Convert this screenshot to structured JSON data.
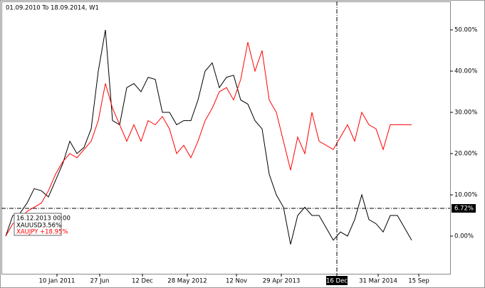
{
  "chart_data": {
    "type": "line",
    "title": "01.09.2010 To 18.09.2014, W1",
    "x_labels": [
      "10 Jan 2011",
      "27 Jun",
      "12 Dec",
      "28 May 2012",
      "12 Nov",
      "29 Apr 2013",
      "16 Dec",
      "31 Mar 2014",
      "15 Sep"
    ],
    "series": [
      {
        "name": "XAUUSD",
        "color": "#000000",
        "crosshair_label": "-3.56%",
        "values": [
          0,
          5,
          5.5,
          8,
          11.5,
          11,
          9.5,
          13.5,
          17.5,
          23,
          20,
          21.5,
          26,
          40,
          50,
          28,
          27,
          36,
          37,
          35,
          38.5,
          38,
          30,
          30,
          27,
          28,
          28,
          33,
          40,
          42,
          36,
          38.5,
          39,
          33,
          32,
          28,
          26,
          15,
          10,
          7,
          -2,
          5,
          7,
          5,
          5,
          2,
          -1,
          1,
          0,
          4,
          10,
          4,
          3,
          1,
          5,
          5,
          2,
          -1
        ]
      },
      {
        "name": "XAUJPY",
        "color": "#ff0000",
        "crosshair_label": "+18.95%",
        "values": [
          0,
          3,
          4,
          6,
          7,
          8,
          11,
          15,
          18,
          20,
          19,
          21,
          23,
          28,
          37,
          31,
          27,
          23,
          27,
          23,
          28,
          27,
          29,
          26,
          20,
          22,
          19,
          23,
          28,
          31,
          35,
          36,
          33,
          38,
          47,
          40,
          45,
          33,
          30,
          23,
          16,
          24,
          20,
          30,
          23,
          22,
          21,
          24,
          27,
          23,
          30,
          27,
          26,
          21,
          27,
          27,
          27,
          27
        ]
      }
    ],
    "ylim": [
      -9.14,
      56.9
    ],
    "yticks": [
      {
        "value": 0,
        "label": "0.00%"
      },
      {
        "value": 10,
        "label": "10.00%"
      },
      {
        "value": 20,
        "label": "20.00%"
      },
      {
        "value": 30,
        "label": "30.00%"
      },
      {
        "value": 40,
        "label": "40.00%"
      },
      {
        "value": 50,
        "label": "50.00%"
      }
    ],
    "crosshair": {
      "label": "16.12.2013 00:00",
      "value": 6.72,
      "value_label": "6.72%"
    }
  }
}
